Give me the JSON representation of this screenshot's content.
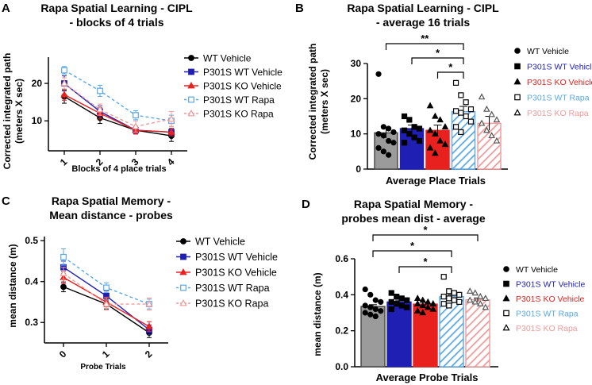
{
  "colors": {
    "wt_vehicle": "#000000",
    "p301s_wt_vehicle": "#1f1fb4",
    "p301s_ko_vehicle": "#e8201e",
    "p301s_wt_rapa": "#5aa8e6",
    "p301s_ko_rapa": "#f09a9a",
    "wt_bar": "#9b9b9b",
    "wt_bar_border": "#444444"
  },
  "chart_data": [
    {
      "panel": "A",
      "type": "line",
      "title_line1": "Rapa Spatial Learning - CIPL",
      "title_line2": "- blocks of 4 trials",
      "xlabel": "Blocks of 4 place trials",
      "ylabel_line1": "Corrected integrated path",
      "ylabel_line2": "(meters X sec)",
      "categories": [
        "1",
        "2",
        "3",
        "4"
      ],
      "yticks": [
        "10",
        "20"
      ],
      "ylim": [
        2,
        27
      ],
      "series": [
        {
          "name": "WT Vehicle",
          "values": [
            16.5,
            10.8,
            7.5,
            6.0
          ],
          "errors": [
            1.8,
            1.5,
            1.0,
            1.5
          ]
        },
        {
          "name": "P301S WT Vehicle",
          "values": [
            20.0,
            12.5,
            7.5,
            7.0
          ],
          "errors": [
            2.0,
            1.5,
            1.0,
            1.0
          ]
        },
        {
          "name": "P301S KO Vehicle",
          "values": [
            17.0,
            12.0,
            7.5,
            7.0
          ],
          "errors": [
            1.5,
            1.5,
            1.0,
            1.0
          ]
        },
        {
          "name": "P301S WT Rapa",
          "values": [
            23.5,
            18.0,
            11.5,
            10.0
          ],
          "errors": [
            1.0,
            1.5,
            1.2,
            1.5
          ]
        },
        {
          "name": "P301S KO Rapa",
          "values": [
            20.0,
            13.0,
            8.5,
            10.5
          ],
          "errors": [
            1.5,
            1.5,
            1.5,
            2.0
          ]
        }
      ]
    },
    {
      "panel": "B",
      "type": "bar",
      "title_line1": "Rapa Spatial Learning - CIPL",
      "title_line2": "- average 16 trials",
      "xlabel": "Average Place Trials",
      "ylabel_line1": "Corrected integrated path",
      "ylabel_line2": "(meters X sec)",
      "yticks": [
        "0",
        "10",
        "20",
        "30"
      ],
      "ylim": [
        0,
        30
      ],
      "series": [
        {
          "name": "WT Vehicle",
          "value": 10.3,
          "error": 1.5,
          "points": [
            27.0,
            12.0,
            11.5,
            10.5,
            10.0,
            9.5,
            8.0,
            7.5,
            6.0,
            5.0,
            4.0
          ]
        },
        {
          "name": "P301S WT Vehicle",
          "value": 11.5,
          "error": 1.0,
          "points": [
            15.0,
            14.0,
            12.0,
            11.5,
            11.0,
            10.0,
            9.0,
            8.0,
            7.5
          ]
        },
        {
          "name": "P301S KO Vehicle",
          "value": 11.0,
          "error": 1.5,
          "points": [
            18.0,
            15.0,
            14.0,
            12.0,
            11.0,
            10.0,
            8.0,
            7.0,
            6.0,
            4.5
          ]
        },
        {
          "name": "P301S WT Rapa",
          "value": 16.3,
          "error": 1.5,
          "points": [
            24.5,
            21.0,
            19.0,
            17.0,
            16.5,
            16.0,
            15.0,
            13.5,
            12.0,
            10.5
          ]
        },
        {
          "name": "P301S KO Rapa",
          "value": 13.0,
          "error": 2.0,
          "points": [
            20.5,
            17.0,
            15.5,
            14.0,
            13.0,
            11.0,
            9.5,
            8.0
          ]
        }
      ],
      "significance": [
        {
          "from": 0,
          "to": 3,
          "label": "**"
        },
        {
          "from": 1,
          "to": 3,
          "label": "*"
        },
        {
          "from": 2,
          "to": 3,
          "label": "*"
        }
      ]
    },
    {
      "panel": "C",
      "type": "line",
      "title_line1": "Rapa Spatial Memory -",
      "title_line2": "Mean distance - probes",
      "xlabel": "Probe Trials",
      "ylabel": "mean distance (m)",
      "categories": [
        "0",
        "1",
        "2"
      ],
      "yticks": [
        "0.3",
        "0.4",
        "0.5"
      ],
      "ylim": [
        0.25,
        0.51
      ],
      "series": [
        {
          "name": "WT Vehicle",
          "values": [
            0.387,
            0.345,
            0.275
          ],
          "errors": [
            0.012,
            0.012,
            0.012
          ]
        },
        {
          "name": "P301S WT Vehicle",
          "values": [
            0.435,
            0.365,
            0.282
          ],
          "errors": [
            0.015,
            0.012,
            0.012
          ]
        },
        {
          "name": "P301S KO Vehicle",
          "values": [
            0.41,
            0.35,
            0.29
          ],
          "errors": [
            0.015,
            0.012,
            0.012
          ]
        },
        {
          "name": "P301S WT Rapa",
          "values": [
            0.46,
            0.385,
            0.345
          ],
          "errors": [
            0.02,
            0.012,
            0.012
          ]
        },
        {
          "name": "P301S KO Rapa",
          "values": [
            0.42,
            0.345,
            0.345
          ],
          "errors": [
            0.015,
            0.015,
            0.015
          ]
        }
      ]
    },
    {
      "panel": "D",
      "type": "bar",
      "title_line1": "Rapa Spatial Memory -",
      "title_line2": "probes mean dist - average",
      "xlabel": "Average Probe Trials",
      "ylabel": "mean distance (m)",
      "yticks": [
        "0.0",
        "0.2",
        "0.4",
        "0.6"
      ],
      "ylim": [
        0,
        0.6
      ],
      "series": [
        {
          "name": "WT Vehicle",
          "value": 0.335,
          "error": 0.01,
          "points": [
            0.43,
            0.4,
            0.37,
            0.36,
            0.34,
            0.33,
            0.32,
            0.31,
            0.3,
            0.29,
            0.28
          ]
        },
        {
          "name": "P301S WT Vehicle",
          "value": 0.36,
          "error": 0.01,
          "points": [
            0.41,
            0.39,
            0.38,
            0.37,
            0.36,
            0.35,
            0.34,
            0.33,
            0.32
          ]
        },
        {
          "name": "P301S KO Vehicle",
          "value": 0.348,
          "error": 0.01,
          "points": [
            0.38,
            0.37,
            0.36,
            0.35,
            0.35,
            0.34,
            0.33,
            0.32,
            0.31,
            0.3
          ]
        },
        {
          "name": "P301S WT Rapa",
          "value": 0.39,
          "error": 0.01,
          "points": [
            0.5,
            0.42,
            0.41,
            0.4,
            0.39,
            0.38,
            0.37,
            0.36,
            0.35,
            0.34
          ]
        },
        {
          "name": "P301S KO Rapa",
          "value": 0.372,
          "error": 0.01,
          "points": [
            0.42,
            0.41,
            0.39,
            0.38,
            0.37,
            0.36,
            0.35,
            0.33
          ]
        }
      ],
      "significance": [
        {
          "from": 0,
          "to": 4,
          "label": "*"
        },
        {
          "from": 0,
          "to": 3,
          "label": "*"
        },
        {
          "from": 1,
          "to": 3,
          "label": "*"
        }
      ]
    }
  ]
}
